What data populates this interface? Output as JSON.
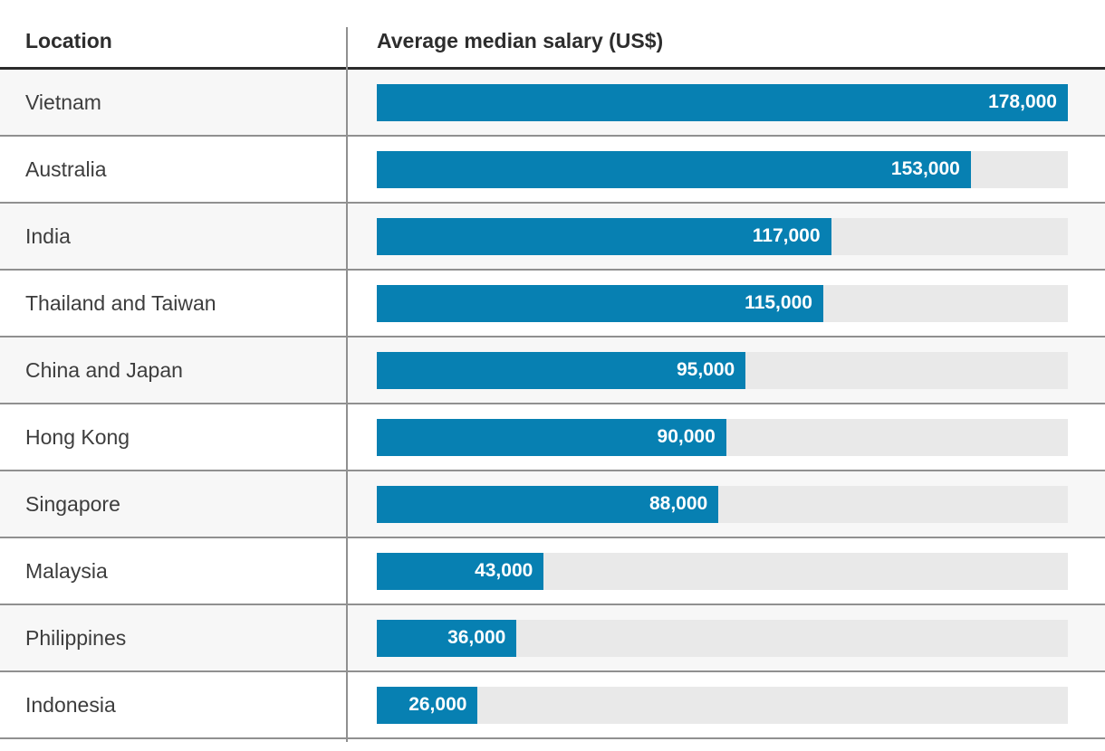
{
  "colors": {
    "bar": "#0780b2",
    "track": "#e9e9e9",
    "row_alt": "#f7f7f7",
    "separator": "#909090",
    "header_rule": "#2b2b2b",
    "header_text": "#2d2d2d",
    "label_text": "#3d3d3d",
    "bar_value_text": "#ffffff"
  },
  "table": {
    "columns": [
      {
        "label": "Location"
      },
      {
        "label": "Average median salary (US$)"
      }
    ],
    "rows": [
      {
        "location": "Vietnam",
        "value": 178000,
        "value_label": "178,000"
      },
      {
        "location": "Australia",
        "value": 153000,
        "value_label": "153,000"
      },
      {
        "location": "India",
        "value": 117000,
        "value_label": "117,000"
      },
      {
        "location": "Thailand and Taiwan",
        "value": 115000,
        "value_label": "115,000"
      },
      {
        "location": "China and Japan",
        "value": 95000,
        "value_label": "95,000"
      },
      {
        "location": "Hong Kong",
        "value": 90000,
        "value_label": "90,000"
      },
      {
        "location": "Singapore",
        "value": 88000,
        "value_label": "88,000"
      },
      {
        "location": "Malaysia",
        "value": 43000,
        "value_label": "43,000"
      },
      {
        "location": "Philippines",
        "value": 36000,
        "value_label": "36,000"
      },
      {
        "location": "Indonesia",
        "value": 26000,
        "value_label": "26,000"
      }
    ]
  },
  "chart_data": {
    "type": "bar",
    "orientation": "horizontal",
    "title": "Average median salary (US$)",
    "xlabel": "Average median salary (US$)",
    "ylabel": "Location",
    "categories": [
      "Vietnam",
      "Australia",
      "India",
      "Thailand and Taiwan",
      "China and Japan",
      "Hong Kong",
      "Singapore",
      "Malaysia",
      "Philippines",
      "Indonesia"
    ],
    "values": [
      178000,
      153000,
      117000,
      115000,
      95000,
      90000,
      88000,
      43000,
      36000,
      26000
    ],
    "value_labels": [
      "178,000",
      "153,000",
      "117,000",
      "115,000",
      "95,000",
      "90,000",
      "88,000",
      "43,000",
      "36,000",
      "26,000"
    ],
    "xlim": [
      0,
      178000
    ],
    "grid": false,
    "legend": false,
    "bar_color": "#0780b2",
    "value_labels_position": "inside-end"
  }
}
